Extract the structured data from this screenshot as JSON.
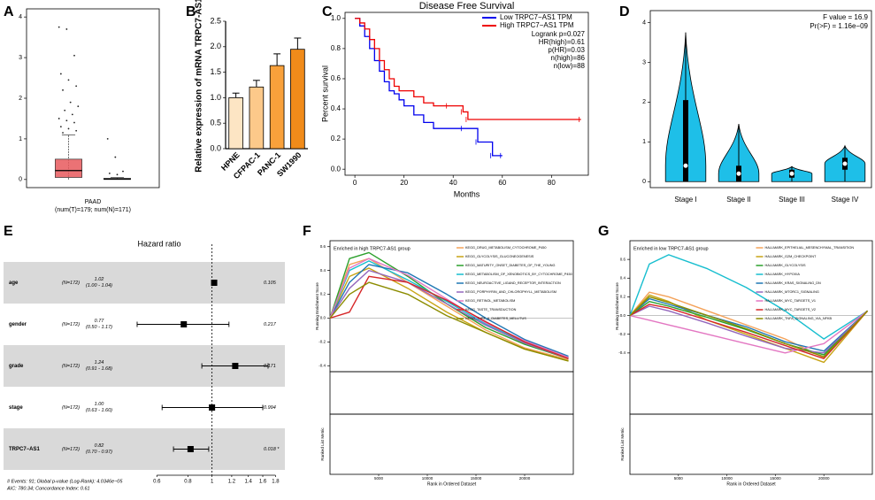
{
  "chart_data": [
    {
      "panel": "A",
      "type": "box",
      "categories": [
        "PAAD"
      ],
      "xlabel": "(num(T)=179; num(N)=171)",
      "boxes": [
        {
          "color": "#e8595d",
          "min": 0,
          "q1": 0.05,
          "median": 0.22,
          "q3": 0.5,
          "max": 1.1
        },
        {
          "color": "#555555",
          "min": 0,
          "q1": 0,
          "median": 0.01,
          "q3": 0.03,
          "max": 0.05
        }
      ],
      "outliers": [
        [
          3.75,
          3.7,
          3.05,
          2.6,
          2.45,
          2.3,
          2.2,
          1.9,
          1.8,
          1.7,
          1.6,
          1.5,
          1.45,
          1.4,
          1.3,
          1.25,
          1.2,
          1.15
        ],
        [
          1.0,
          0.55,
          0.2,
          0.15,
          0.12
        ]
      ],
      "ylim": [
        -0.2,
        4.2
      ],
      "yticks": [
        0,
        1,
        2,
        3,
        4
      ]
    },
    {
      "panel": "B",
      "type": "bar",
      "ylabel": "Relative expression of mRNA TRPC7-AS1",
      "categories": [
        "HPNE",
        "CFPAC-1",
        "PANC-1",
        "SW1990"
      ],
      "values": [
        1.0,
        1.21,
        1.63,
        1.95
      ],
      "errors": [
        0.09,
        0.13,
        0.23,
        0.22
      ],
      "colors": [
        "#fde5c4",
        "#fcc98a",
        "#f9a13b",
        "#f08b1a"
      ],
      "ylim": [
        0,
        2.5
      ],
      "yticks": [
        {
          "value": 0,
          "label": "0.0"
        },
        0.5,
        {
          "value": 1,
          "label": "1.0"
        },
        1.5,
        {
          "value": 2,
          "label": "2.0"
        },
        2.5
      ]
    },
    {
      "panel": "C",
      "type": "survival",
      "title": "Disease Free Survival",
      "xlabel": "Months",
      "ylabel": "Percent survival",
      "xlim": [
        -4,
        95
      ],
      "xticks": [
        0,
        20,
        40,
        60,
        80
      ],
      "ylim": [
        -0.04,
        1.04
      ],
      "yticks": [
        {
          "value": 0,
          "label": "0.0"
        },
        0.2,
        0.4,
        0.6,
        0.8,
        {
          "value": 1,
          "label": "1.0"
        }
      ],
      "series": [
        {
          "name": "Low TRPC7−AS1 TPM",
          "color": "#0000ee",
          "x": [
            0,
            2,
            4,
            6,
            8,
            10,
            12,
            14,
            16,
            18,
            20,
            24,
            28,
            32,
            36,
            44,
            50,
            56,
            60
          ],
          "values": [
            1,
            0.95,
            0.88,
            0.8,
            0.72,
            0.65,
            0.58,
            0.52,
            0.5,
            0.46,
            0.42,
            0.36,
            0.31,
            0.27,
            0.27,
            0.27,
            0.18,
            0.09,
            0.09
          ]
        },
        {
          "name": "High TRPC7−AS1 TPM",
          "color": "#ee0000",
          "x": [
            0,
            2,
            4,
            6,
            8,
            10,
            12,
            14,
            16,
            18,
            20,
            24,
            28,
            32,
            38,
            44,
            46,
            92
          ],
          "values": [
            1,
            0.97,
            0.93,
            0.86,
            0.8,
            0.72,
            0.66,
            0.6,
            0.55,
            0.52,
            0.52,
            0.48,
            0.44,
            0.42,
            0.42,
            0.38,
            0.33,
            0.33
          ]
        }
      ],
      "annotations": [
        "Logrank p=0.027",
        "HR(high)=0.61",
        "p(HR)=0.03",
        "n(high)=86",
        "n(low)=88"
      ]
    },
    {
      "panel": "D",
      "type": "violin",
      "categories": [
        "Stage I",
        "Stage II",
        "Stage III",
        "Stage IV"
      ],
      "color": "#1ebfe8",
      "min": [
        0,
        0,
        0,
        0
      ],
      "q1": [
        0,
        0,
        0.1,
        0.3
      ],
      "median": [
        0.4,
        0.2,
        0.2,
        0.45
      ],
      "q3": [
        2.05,
        0.4,
        0.3,
        0.6
      ],
      "max": [
        3.75,
        1.45,
        0.38,
        0.9
      ],
      "ylim": [
        -0.15,
        4.3
      ],
      "yticks": [
        0,
        1,
        2,
        3,
        4
      ],
      "annotations": [
        "F value = 16.9",
        "Pr(>F) = 1.16e−09"
      ]
    },
    {
      "panel": "E",
      "type": "forest",
      "title": "Hazard ratio",
      "log": true,
      "categories": [
        "age",
        "gender",
        "grade",
        "stage",
        "TRPC7−AS1"
      ],
      "n_labels": [
        "(N=172)",
        "(N=172)",
        "(N=172)",
        "(N=172)",
        "(N=172)"
      ],
      "values": [
        1.02,
        0.77,
        1.24,
        1.0,
        0.82
      ],
      "value_labels": [
        "1.02",
        "0.77",
        "1.24",
        "1.00",
        "0.82"
      ],
      "lower": [
        1.0,
        0.5,
        0.91,
        0.63,
        0.7
      ],
      "upper": [
        1.04,
        1.17,
        1.68,
        1.6,
        0.97
      ],
      "ci_labels": [
        "(1.00 - 1.04)",
        "(0.50 - 1.17)",
        "(0.91 - 1.68)",
        "(0.63 - 1.60)",
        "(0.70 - 0.97)"
      ],
      "p_labels": [
        "0.105",
        "0.217",
        "0.171",
        "0.994",
        "0.018 *"
      ],
      "xlim": [
        0.5,
        1.9
      ],
      "xticks": [
        0.6,
        0.8,
        1,
        1.2,
        1.4,
        1.6,
        1.8
      ],
      "notes": [
        "# Events: 91; Global p-value (Log-Rank): 4.0346e−05",
        "AIC: 780.34; Concordance Index: 0.61"
      ]
    },
    {
      "panel": "F",
      "type": "gsea",
      "title": "Enriched in high TRPC7-AS1 group",
      "ylabel": "Running Enrichment Score",
      "ylabel2": "Ranked List Metric",
      "xlabel": "Rank in Ordered Dataset",
      "xlim": [
        0,
        25000
      ],
      "xticks": [
        5000,
        10000,
        15000,
        20000
      ],
      "ylim": [
        -0.45,
        0.65
      ],
      "yticks": [
        -0.4,
        -0.2,
        {
          "value": 0,
          "label": "0.0"
        },
        0.2,
        0.4,
        0.6
      ],
      "x": [
        0,
        2000,
        4000,
        8000,
        12000,
        16000,
        20000,
        24500
      ],
      "series": [
        {
          "name": "KEGG_DRUG_METABOLISM_CYTOCHROME_P450",
          "color": "#f4a259",
          "values": [
            0,
            0.45,
            0.5,
            0.3,
            0.1,
            -0.1,
            -0.25,
            -0.35
          ]
        },
        {
          "name": "KEGG_GLYCOLYSIS_GLUCONEOGENESIS",
          "color": "#c8a415",
          "values": [
            0,
            0.35,
            0.42,
            0.25,
            0.05,
            -0.12,
            -0.26,
            -0.36
          ]
        },
        {
          "name": "KEGG_MATURITY_ONSET_DIABETES_OF_THE_YOUNG",
          "color": "#2ca02c",
          "values": [
            0,
            0.5,
            0.55,
            0.35,
            0.12,
            -0.08,
            -0.22,
            -0.34
          ]
        },
        {
          "name": "KEGG_METABOLISM_OF_XENOBIOTICS_BY_CYTOCHROME_P450",
          "color": "#17becf",
          "values": [
            0,
            0.4,
            0.48,
            0.32,
            0.14,
            -0.05,
            -0.2,
            -0.33
          ]
        },
        {
          "name": "KEGG_NEUROACTIVE_LIGAND_RECEPTOR_INTERACTION",
          "color": "#1f77b4",
          "values": [
            0,
            0.3,
            0.45,
            0.38,
            0.2,
            0,
            -0.18,
            -0.32
          ]
        },
        {
          "name": "KEGG_PORPHYRIN_AND_CHLOROPHYLL_METABOLISM",
          "color": "#9467bd",
          "values": [
            0,
            0.25,
            0.4,
            0.3,
            0.12,
            -0.06,
            -0.21,
            -0.34
          ]
        },
        {
          "name": "KEGG_RETINOL_METABOLISM",
          "color": "#e377c2",
          "values": [
            0,
            0.42,
            0.5,
            0.36,
            0.16,
            -0.04,
            -0.19,
            -0.33
          ]
        },
        {
          "name": "KEGG_TASTE_TRANSDUCTION",
          "color": "#d62728",
          "values": [
            0,
            0.05,
            0.35,
            0.3,
            0.15,
            -0.03,
            -0.2,
            -0.34
          ]
        },
        {
          "name": "KEGG_TYPE_II_DIABETES_MELLITUS",
          "color": "#8c8c00",
          "values": [
            0,
            0.2,
            0.3,
            0.2,
            0.02,
            -0.12,
            -0.26,
            -0.36
          ]
        }
      ]
    },
    {
      "panel": "G",
      "type": "gsea",
      "title": "Enriched in low TRPC7-AS1 group",
      "ylabel": "Running Enrichment Score",
      "ylabel2": "Ranked List Metric",
      "xlabel": "Rank in Ordered Dataset",
      "xlim": [
        0,
        25000
      ],
      "xticks": [
        5000,
        10000,
        15000,
        20000
      ],
      "ylim": [
        -0.6,
        0.8
      ],
      "yticks": [
        -0.4,
        -0.2,
        {
          "value": 0,
          "label": "0.0"
        },
        0.2,
        0.4,
        0.6
      ],
      "x": [
        0,
        2000,
        4000,
        8000,
        12000,
        16000,
        20000,
        24500
      ],
      "series": [
        {
          "name": "HALLMARK_EPITHELIAL_MESENCHYMAL_TRANSITION",
          "color": "#f4a259",
          "values": [
            0,
            0.25,
            0.2,
            0.05,
            -0.1,
            -0.25,
            -0.45,
            0.05
          ]
        },
        {
          "name": "HALLMARK_G2M_CHECKPOINT",
          "color": "#c8a415",
          "values": [
            0,
            0.22,
            0.15,
            -0.05,
            -0.2,
            -0.35,
            -0.5,
            0.05
          ]
        },
        {
          "name": "HALLMARK_GLYCOLYSIS",
          "color": "#2ca02c",
          "values": [
            0,
            0.15,
            0.1,
            -0.02,
            -0.15,
            -0.3,
            -0.42,
            0.05
          ]
        },
        {
          "name": "HALLMARK_HYPOXIA",
          "color": "#17becf",
          "values": [
            0,
            0.55,
            0.65,
            0.5,
            0.3,
            0.05,
            -0.25,
            0.05
          ]
        },
        {
          "name": "HALLMARK_KRAS_SIGNALING_DN",
          "color": "#1f77b4",
          "values": [
            0,
            0.18,
            0.12,
            0,
            -0.12,
            -0.28,
            -0.38,
            0.05
          ]
        },
        {
          "name": "HALLMARK_MTORC1_SIGNALING",
          "color": "#9467bd",
          "values": [
            0,
            0.1,
            0.05,
            -0.08,
            -0.22,
            -0.35,
            -0.4,
            0.05
          ]
        },
        {
          "name": "HALLMARK_MYC_TARGETS_V1",
          "color": "#e377c2",
          "values": [
            0,
            -0.05,
            -0.1,
            -0.2,
            -0.3,
            -0.4,
            -0.3,
            0.05
          ]
        },
        {
          "name": "HALLMARK_MYC_TARGETS_V2",
          "color": "#d62728",
          "values": [
            0,
            0.12,
            0.08,
            -0.05,
            -0.18,
            -0.32,
            -0.46,
            0.05
          ]
        },
        {
          "name": "HALLMARK_TNFA_SIGNALING_VIA_NFKB",
          "color": "#8c8c00",
          "values": [
            0,
            0.2,
            0.14,
            0,
            -0.14,
            -0.3,
            -0.44,
            0.05
          ]
        }
      ]
    }
  ]
}
